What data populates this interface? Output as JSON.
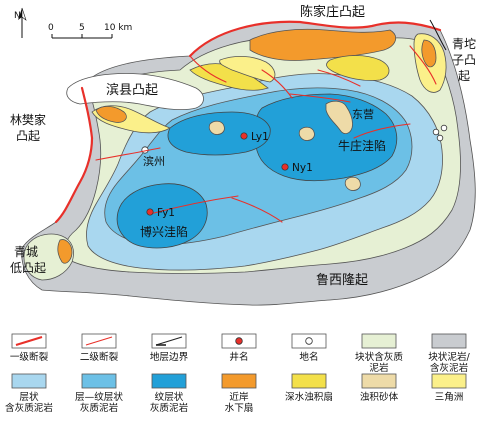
{
  "map": {
    "north_label": "N",
    "scale": {
      "ticks": [
        "0",
        "5",
        "10 km"
      ]
    },
    "regions": {
      "chenjiazhuang": "陈家庄凸起",
      "qingtuozi": [
        "青坨",
        "子凸",
        "起"
      ],
      "binxian": "滨县凸起",
      "linfanjia": [
        "林樊家",
        "凸起"
      ],
      "qingcheng": [
        "青城",
        "低凸起"
      ],
      "luxi": "鲁西隆起",
      "niuzhuang": "牛庄洼陷",
      "boxing": "博兴洼陷"
    },
    "places": {
      "dongying": "东营",
      "binzhou": "滨州"
    },
    "wells": [
      {
        "name": "Ly1"
      },
      {
        "name": "Ny1"
      },
      {
        "name": "Fy1"
      }
    ]
  },
  "legend": {
    "items": [
      {
        "key": "fault1",
        "label": [
          "一级断裂"
        ],
        "color": "#e8302a"
      },
      {
        "key": "fault2",
        "label": [
          "二级断裂"
        ],
        "color": "#e8302a"
      },
      {
        "key": "boundary",
        "label": [
          "地层边界"
        ],
        "color": "#222222"
      },
      {
        "key": "well",
        "label": [
          "井名"
        ],
        "color": "#e8302a"
      },
      {
        "key": "place",
        "label": [
          "地名"
        ],
        "color": "#ffffff"
      },
      {
        "key": "massive_calc_mud",
        "label": [
          "块状含灰质",
          "泥岩"
        ],
        "color": "#e6f0d4"
      },
      {
        "key": "massive_mud",
        "label": [
          "块状泥岩/",
          "含灰泥岩"
        ],
        "color": "#c9ccd0"
      },
      {
        "key": "layered_calc_mud",
        "label": [
          "层状",
          "含灰质泥岩"
        ],
        "color": "#a9d7ef"
      },
      {
        "key": "layer_lamina_calc_mud",
        "label": [
          "层—纹层状",
          "灰质泥岩"
        ],
        "color": "#6cc0e6"
      },
      {
        "key": "laminated_calc_mud",
        "label": [
          "纹层状",
          "灰质泥岩"
        ],
        "color": "#22a0d8"
      },
      {
        "key": "nearshore_fan",
        "label": [
          "近岸",
          "水下扇"
        ],
        "color": "#f39a2c"
      },
      {
        "key": "deepwater_turbidite",
        "label": [
          "深水浊积扇"
        ],
        "color": "#f3e04a"
      },
      {
        "key": "turbidite_sand",
        "label": [
          "浊积砂体"
        ],
        "color": "#eedba8"
      },
      {
        "key": "delta",
        "label": [
          "三角洲"
        ],
        "color": "#fbf08a"
      }
    ]
  }
}
